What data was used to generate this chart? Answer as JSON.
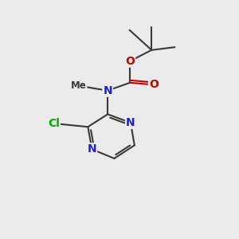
{
  "background_color": "#ebebeb",
  "atom_colors": {
    "C": "#3a3a3a",
    "N": "#2020cc",
    "O": "#cc0000",
    "Cl": "#00aa00",
    "H": "#3a3a3a"
  },
  "bond_color": "#3a3a3a",
  "bond_width": 1.5,
  "font_size": 10,
  "fig_size": [
    3.0,
    3.0
  ],
  "dpi": 100,
  "xlim": [
    0,
    10
  ],
  "ylim": [
    0,
    10
  ]
}
